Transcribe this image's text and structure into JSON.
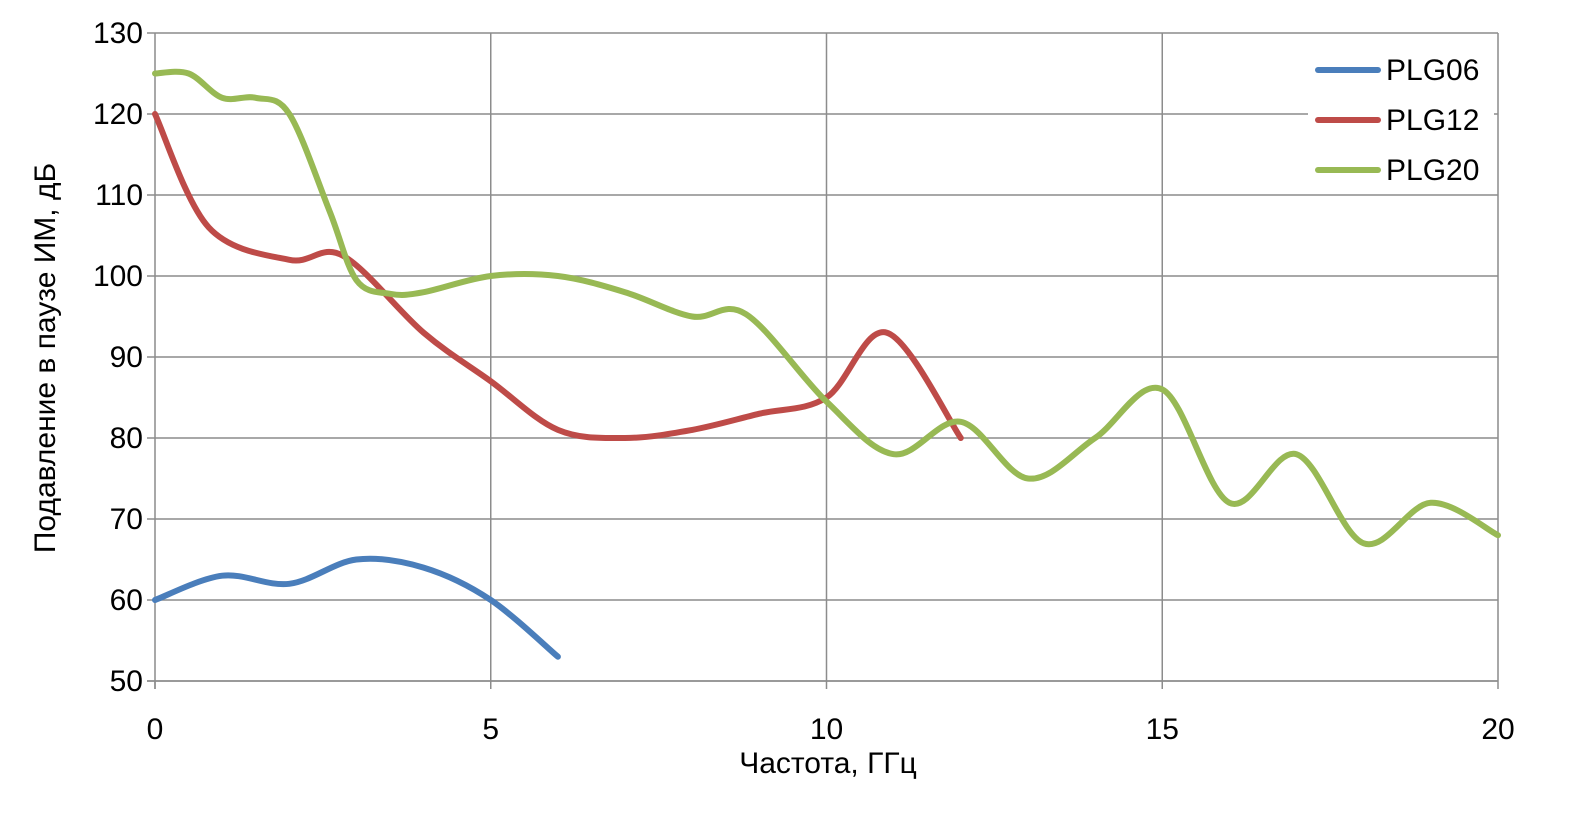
{
  "chart_data": {
    "type": "line",
    "title": "",
    "xlabel": "Частота, ГГц",
    "ylabel": "Подавление в паузе ИМ, дБ",
    "xlim": [
      0,
      20
    ],
    "ylim": [
      50,
      130
    ],
    "xticks": [
      0,
      5,
      10,
      15,
      20
    ],
    "yticks": [
      50,
      60,
      70,
      80,
      90,
      100,
      110,
      120,
      130
    ],
    "grid": true,
    "legend_position": "top-right",
    "series": [
      {
        "name": "PLG06",
        "color": "#4a7ebb",
        "x": [
          0,
          1,
          2,
          3,
          4,
          5,
          6
        ],
        "y": [
          60,
          63,
          62,
          65,
          64,
          60,
          53
        ]
      },
      {
        "name": "PLG12",
        "color": "#be4b48",
        "x": [
          0,
          0.8,
          2,
          2.8,
          4,
          5,
          6,
          7,
          8,
          9,
          10,
          10.9,
          12
        ],
        "y": [
          120,
          106,
          102,
          102.5,
          93,
          87,
          81,
          80,
          81,
          83,
          85,
          93,
          80
        ]
      },
      {
        "name": "PLG20",
        "color": "#98b954",
        "x": [
          0,
          0.5,
          1,
          1.5,
          2,
          2.6,
          3,
          3.5,
          4,
          5,
          6,
          7,
          8,
          8.8,
          10,
          11,
          12,
          13,
          14,
          15,
          16,
          17,
          18,
          19,
          20
        ],
        "y": [
          125,
          125,
          122,
          122,
          120,
          108,
          99.5,
          97.8,
          98,
          100,
          100,
          98,
          95,
          95.3,
          84.5,
          78,
          82,
          75,
          80,
          86,
          72,
          78,
          67,
          72,
          68
        ]
      }
    ]
  }
}
